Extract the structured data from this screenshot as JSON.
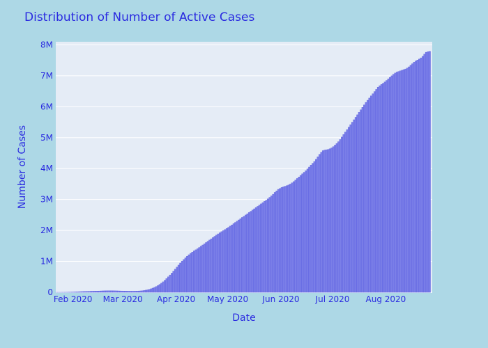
{
  "chart_data": {
    "type": "bar",
    "title": "Distribution of Number of Active Cases",
    "xlabel": "Date",
    "ylabel": "Number of Cases",
    "x_start": "2020-01-22",
    "x_end": "2020-08-27",
    "xlim": [
      "2020-01-22",
      "2020-08-28"
    ],
    "ylim": [
      0,
      8100000
    ],
    "grid": true,
    "legend": "none",
    "colors": {
      "bar": "#7b7fe8",
      "bar_stroke": "#5a5ee0",
      "plot_bg": "#e5ecf6",
      "paper_bg": "#add8e6",
      "text": "#2a2ae0",
      "grid": "#ffffff"
    },
    "y_ticks": [
      {
        "value": 0,
        "label": "0"
      },
      {
        "value": 1000000,
        "label": "1M"
      },
      {
        "value": 2000000,
        "label": "2M"
      },
      {
        "value": 3000000,
        "label": "3M"
      },
      {
        "value": 4000000,
        "label": "4M"
      },
      {
        "value": 5000000,
        "label": "5M"
      },
      {
        "value": 6000000,
        "label": "6M"
      },
      {
        "value": 7000000,
        "label": "7M"
      },
      {
        "value": 8000000,
        "label": "8M"
      }
    ],
    "x_ticks": [
      {
        "date": "2020-02-01",
        "label": "Feb 2020"
      },
      {
        "date": "2020-03-01",
        "label": "Mar 2020"
      },
      {
        "date": "2020-04-01",
        "label": "Apr 2020"
      },
      {
        "date": "2020-05-01",
        "label": "May 2020"
      },
      {
        "date": "2020-06-01",
        "label": "Jun 2020"
      },
      {
        "date": "2020-07-01",
        "label": "Jul 2020"
      },
      {
        "date": "2020-08-01",
        "label": "Aug 2020"
      }
    ],
    "values": [
      500,
      600,
      800,
      1300,
      2000,
      2600,
      4300,
      5500,
      7600,
      9100,
      11500,
      14500,
      17000,
      19500,
      22500,
      24500,
      26500,
      28500,
      31000,
      32000,
      34000,
      35500,
      37000,
      38500,
      39500,
      41500,
      44500,
      46500,
      48000,
      49000,
      50000,
      50000,
      49500,
      49000,
      48000,
      46500,
      45000,
      43000,
      41000,
      39500,
      38000,
      37000,
      36000,
      35500,
      35000,
      36000,
      37000,
      39000,
      42000,
      46000,
      52000,
      60000,
      70000,
      82000,
      97000,
      115000,
      136000,
      160000,
      188000,
      220000,
      255000,
      295000,
      340000,
      390000,
      445000,
      500000,
      560000,
      620000,
      685000,
      750000,
      815000,
      880000,
      945000,
      1005000,
      1060000,
      1115000,
      1165000,
      1215000,
      1260000,
      1300000,
      1340000,
      1375000,
      1410000,
      1450000,
      1490000,
      1530000,
      1570000,
      1610000,
      1650000,
      1690000,
      1730000,
      1770000,
      1810000,
      1850000,
      1890000,
      1925000,
      1960000,
      1995000,
      2030000,
      2065000,
      2100000,
      2140000,
      2180000,
      2220000,
      2260000,
      2300000,
      2340000,
      2380000,
      2420000,
      2460000,
      2500000,
      2540000,
      2580000,
      2620000,
      2660000,
      2700000,
      2740000,
      2780000,
      2820000,
      2860000,
      2900000,
      2940000,
      2980000,
      3020000,
      3070000,
      3120000,
      3170000,
      3230000,
      3280000,
      3330000,
      3360000,
      3390000,
      3410000,
      3430000,
      3450000,
      3470000,
      3500000,
      3540000,
      3580000,
      3630000,
      3680000,
      3730000,
      3780000,
      3830000,
      3880000,
      3930000,
      3990000,
      4050000,
      4110000,
      4170000,
      4230000,
      4300000,
      4380000,
      4460000,
      4530000,
      4580000,
      4600000,
      4610000,
      4620000,
      4640000,
      4670000,
      4710000,
      4760000,
      4810000,
      4870000,
      4940000,
      5020000,
      5100000,
      5180000,
      5260000,
      5340000,
      5420000,
      5500000,
      5580000,
      5660000,
      5740000,
      5820000,
      5900000,
      5980000,
      6060000,
      6140000,
      6210000,
      6280000,
      6350000,
      6420000,
      6490000,
      6560000,
      6630000,
      6680000,
      6720000,
      6760000,
      6800000,
      6850000,
      6900000,
      6950000,
      7000000,
      7050000,
      7090000,
      7120000,
      7140000,
      7160000,
      7180000,
      7200000,
      7220000,
      7250000,
      7290000,
      7340000,
      7390000,
      7440000,
      7480000,
      7510000,
      7540000,
      7580000,
      7630000,
      7700000,
      7760000,
      7780000,
      7790000
    ]
  }
}
